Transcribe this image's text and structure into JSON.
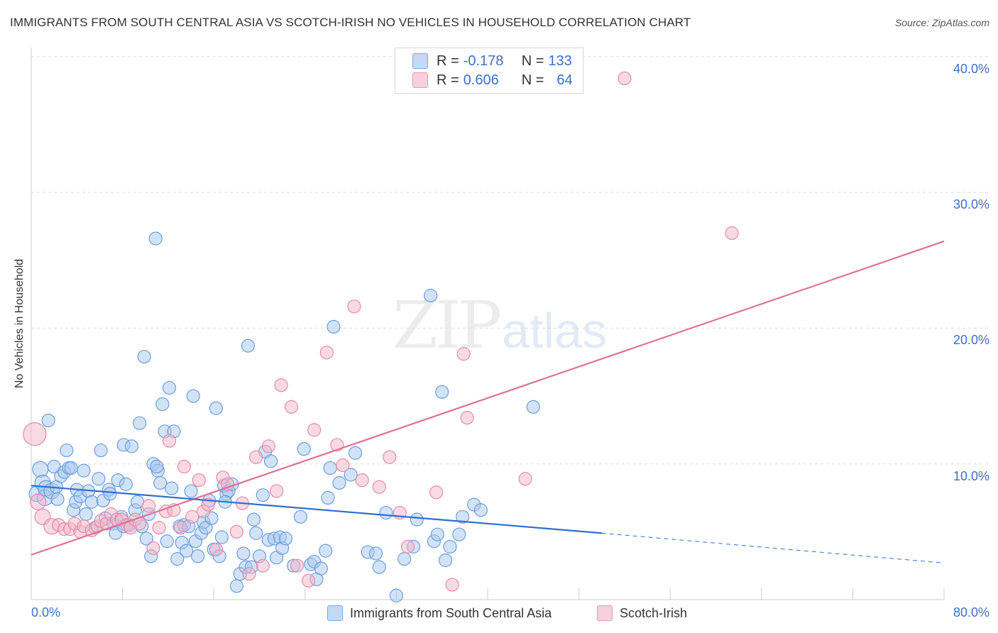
{
  "title": "IMMIGRANTS FROM SOUTH CENTRAL ASIA VS SCOTCH-IRISH NO VEHICLES IN HOUSEHOLD CORRELATION CHART",
  "source": "Source: ZipAtlas.com",
  "watermark": {
    "zip": "ZIP",
    "atlas": "atlas"
  },
  "legend": {
    "rows": [
      {
        "r_label": "R = ",
        "r_value": "-0.178",
        "n_label": "N = ",
        "n_value": "133",
        "color": "#a8c8f0"
      },
      {
        "r_label": "R = ",
        "r_value": "0.606",
        "n_label": "N = ",
        "n_value": "64",
        "color": "#f4b6c8"
      }
    ]
  },
  "bottom_legend": {
    "series1": "Immigrants from South Central Asia",
    "series2": "Scotch-Irish"
  },
  "chart_data": {
    "type": "scatter",
    "ylabel": "No Vehicles in Household",
    "xlim": [
      0,
      80
    ],
    "ylim": [
      0,
      40
    ],
    "x_ticks": [
      "0.0%",
      "80.0%"
    ],
    "y_ticks": [
      "10.0%",
      "20.0%",
      "30.0%",
      "40.0%"
    ],
    "grid": "horizontal dashed",
    "legend_position": "top-center",
    "series": [
      {
        "name": "Immigrants from South Central Asia",
        "color": "#6a9ee0",
        "fill": "#a8c8f0",
        "trend": {
          "x": [
            0,
            50
          ],
          "y": [
            8.4,
            4.9
          ],
          "dashed_to": [
            80,
            2.7
          ]
        },
        "points": [
          [
            0.5,
            7.8
          ],
          [
            0.8,
            9.6
          ],
          [
            1,
            8.6
          ],
          [
            1.2,
            7.5
          ],
          [
            1.3,
            8.2
          ],
          [
            1.5,
            13.2
          ],
          [
            1.8,
            8.0
          ],
          [
            2,
            9.8
          ],
          [
            2.2,
            8.3
          ],
          [
            2.3,
            7.4
          ],
          [
            2.6,
            9.1
          ],
          [
            2.9,
            9.4
          ],
          [
            3.1,
            11.0
          ],
          [
            3.3,
            9.7
          ],
          [
            3.5,
            9.7
          ],
          [
            3.7,
            6.6
          ],
          [
            3.9,
            7.2
          ],
          [
            4,
            8.1
          ],
          [
            4.3,
            7.6
          ],
          [
            4.6,
            9.5
          ],
          [
            4.8,
            6.3
          ],
          [
            5,
            8.0
          ],
          [
            5.3,
            7.2
          ],
          [
            5.6,
            5.3
          ],
          [
            5.9,
            8.9
          ],
          [
            6.1,
            11.0
          ],
          [
            6.3,
            7.3
          ],
          [
            6.5,
            6.0
          ],
          [
            6.8,
            8.1
          ],
          [
            6.9,
            7.8
          ],
          [
            7.2,
            5.6
          ],
          [
            7.4,
            4.9
          ],
          [
            7.6,
            8.8
          ],
          [
            7.9,
            6.1
          ],
          [
            8.1,
            5.4
          ],
          [
            8.3,
            8.5
          ],
          [
            8.1,
            11.4
          ],
          [
            8.6,
            5.5
          ],
          [
            8.8,
            11.3
          ],
          [
            9.1,
            6.6
          ],
          [
            9.3,
            7.2
          ],
          [
            9.5,
            13.0
          ],
          [
            9.7,
            5.4
          ],
          [
            9.9,
            17.9
          ],
          [
            10.1,
            4.5
          ],
          [
            10.3,
            6.3
          ],
          [
            10.5,
            3.2
          ],
          [
            10.7,
            10.0
          ],
          [
            10.9,
            26.6
          ],
          [
            11.1,
            9.5
          ],
          [
            11.3,
            8.6
          ],
          [
            11.5,
            14.4
          ],
          [
            11.7,
            12.4
          ],
          [
            11.9,
            4.3
          ],
          [
            12.1,
            15.6
          ],
          [
            12.3,
            8.2
          ],
          [
            12.5,
            12.4
          ],
          [
            12.8,
            3.0
          ],
          [
            13,
            5.4
          ],
          [
            13.2,
            4.2
          ],
          [
            13.4,
            5.5
          ],
          [
            13.6,
            3.6
          ],
          [
            13.8,
            5.4
          ],
          [
            14,
            8.0
          ],
          [
            14.2,
            15.0
          ],
          [
            14.4,
            4.3
          ],
          [
            14.6,
            3.2
          ],
          [
            14.9,
            4.9
          ],
          [
            15.1,
            5.7
          ],
          [
            15.3,
            5.3
          ],
          [
            15.6,
            7.3
          ],
          [
            15.8,
            6.0
          ],
          [
            16,
            3.7
          ],
          [
            16.2,
            14.1
          ],
          [
            16.5,
            3.2
          ],
          [
            16.7,
            4.6
          ],
          [
            16.9,
            8.4
          ],
          [
            17.1,
            7.8
          ],
          [
            17.3,
            8.0
          ],
          [
            17.6,
            8.5
          ],
          [
            18,
            1.0
          ],
          [
            18.3,
            1.9
          ],
          [
            18.6,
            3.4
          ],
          [
            18.8,
            2.4
          ],
          [
            19,
            18.7
          ],
          [
            19.3,
            2.4
          ],
          [
            19.5,
            5.9
          ],
          [
            19.7,
            4.9
          ],
          [
            20,
            3.2
          ],
          [
            20.3,
            7.7
          ],
          [
            20.5,
            10.9
          ],
          [
            20.8,
            4.4
          ],
          [
            21,
            10.2
          ],
          [
            21.3,
            4.5
          ],
          [
            21.5,
            3.1
          ],
          [
            21.8,
            4.6
          ],
          [
            22,
            3.8
          ],
          [
            22.3,
            4.5
          ],
          [
            23,
            2.5
          ],
          [
            23.6,
            6.1
          ],
          [
            23.9,
            11.1
          ],
          [
            24.5,
            2.6
          ],
          [
            24.8,
            2.8
          ],
          [
            25,
            1.5
          ],
          [
            25.4,
            2.3
          ],
          [
            25.8,
            3.6
          ],
          [
            26.2,
            9.7
          ],
          [
            26.5,
            20.1
          ],
          [
            27,
            8.6
          ],
          [
            28,
            9.2
          ],
          [
            28.4,
            10.8
          ],
          [
            29.5,
            3.5
          ],
          [
            30.2,
            3.4
          ],
          [
            30.5,
            2.4
          ],
          [
            31.1,
            6.4
          ],
          [
            32,
            0.3
          ],
          [
            32.7,
            3.0
          ],
          [
            33.5,
            3.9
          ],
          [
            33.8,
            5.9
          ],
          [
            35,
            22.4
          ],
          [
            35.3,
            4.3
          ],
          [
            35.6,
            4.8
          ],
          [
            36,
            15.3
          ],
          [
            36.3,
            2.9
          ],
          [
            36.7,
            3.9
          ],
          [
            37.5,
            4.8
          ],
          [
            37.8,
            6.1
          ],
          [
            38.8,
            7.0
          ],
          [
            39.4,
            6.6
          ],
          [
            44,
            14.2
          ],
          [
            11.0,
            9.8
          ],
          [
            17.0,
            7.2
          ],
          [
            26.0,
            7.5
          ]
        ]
      },
      {
        "name": "Scotch-Irish",
        "color": "#e68aa8",
        "fill": "#f4b6c8",
        "trend": {
          "x": [
            0,
            80
          ],
          "y": [
            3.3,
            26.4
          ]
        },
        "points": [
          [
            0.3,
            12.2
          ],
          [
            0.6,
            7.2
          ],
          [
            1,
            6.1
          ],
          [
            1.8,
            5.4
          ],
          [
            2.4,
            5.5
          ],
          [
            2.9,
            5.2
          ],
          [
            3.4,
            5.2
          ],
          [
            3.8,
            5.6
          ],
          [
            4.3,
            5.0
          ],
          [
            4.6,
            5.4
          ],
          [
            5.3,
            5.1
          ],
          [
            5.8,
            5.4
          ],
          [
            6.1,
            5.8
          ],
          [
            6.6,
            5.6
          ],
          [
            7,
            6.3
          ],
          [
            7.5,
            5.9
          ],
          [
            7.9,
            5.9
          ],
          [
            8.4,
            5.5
          ],
          [
            8.7,
            5.3
          ],
          [
            9.1,
            5.9
          ],
          [
            9.5,
            5.6
          ],
          [
            10.3,
            6.9
          ],
          [
            10.7,
            3.8
          ],
          [
            11.2,
            5.3
          ],
          [
            11.8,
            6.5
          ],
          [
            12.1,
            11.7
          ],
          [
            12.5,
            6.6
          ],
          [
            13.1,
            5.3
          ],
          [
            13.4,
            9.8
          ],
          [
            14.1,
            6.1
          ],
          [
            14.7,
            8.8
          ],
          [
            15.1,
            6.5
          ],
          [
            15.5,
            7.0
          ],
          [
            16.2,
            3.7
          ],
          [
            16.8,
            9.0
          ],
          [
            17.2,
            8.5
          ],
          [
            18,
            5.0
          ],
          [
            18.5,
            7.1
          ],
          [
            19.1,
            1.9
          ],
          [
            19.7,
            10.5
          ],
          [
            20.3,
            2.5
          ],
          [
            20.8,
            11.3
          ],
          [
            21.5,
            8.0
          ],
          [
            21.9,
            15.8
          ],
          [
            22.8,
            14.2
          ],
          [
            23.3,
            2.5
          ],
          [
            24.3,
            1.4
          ],
          [
            24.8,
            12.5
          ],
          [
            25.9,
            18.2
          ],
          [
            26.8,
            11.4
          ],
          [
            27.3,
            9.9
          ],
          [
            28.3,
            21.6
          ],
          [
            29,
            8.8
          ],
          [
            30.5,
            8.3
          ],
          [
            31.4,
            10.5
          ],
          [
            32.3,
            6.4
          ],
          [
            33,
            3.9
          ],
          [
            35.5,
            7.9
          ],
          [
            36.9,
            1.1
          ],
          [
            37.9,
            18.1
          ],
          [
            38.2,
            13.4
          ],
          [
            43.3,
            8.9
          ],
          [
            52,
            38.4
          ],
          [
            61.4,
            27.0
          ]
        ]
      }
    ]
  }
}
